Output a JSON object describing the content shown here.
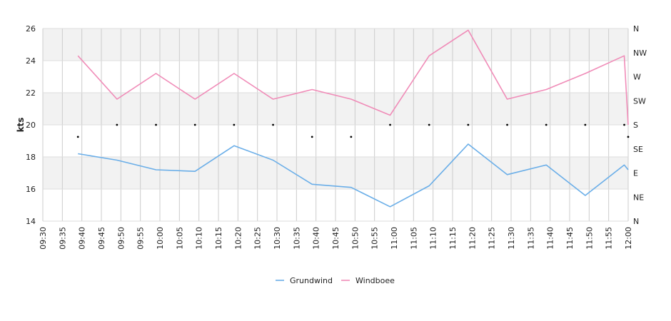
{
  "chart_data": {
    "type": "line",
    "ylabel": "kts",
    "ylim": [
      14,
      26
    ],
    "y_ticks": [
      "26",
      "24",
      "22",
      "20",
      "18",
      "16",
      "14"
    ],
    "right_axis_labels": [
      "N",
      "NW",
      "W",
      "SW",
      "S",
      "SE",
      "E",
      "NE",
      "N"
    ],
    "x_tick_labels": [
      "09:30",
      "09:35",
      "09:40",
      "09:45",
      "09:50",
      "09:55",
      "10:00",
      "10:05",
      "10:10",
      "10:15",
      "10:20",
      "10:25",
      "10:30",
      "10:35",
      "10:40",
      "10:45",
      "10:50",
      "10:55",
      "11:00",
      "11:05",
      "11:10",
      "11:15",
      "11:20",
      "11:25",
      "11:30",
      "11:35",
      "11:40",
      "11:45",
      "11:50",
      "11:55",
      "12:00"
    ],
    "grid": true,
    "legend_position": "bottom-center",
    "series": [
      {
        "name": "Grundwind",
        "color": "#6aaee8",
        "x": [
          "09:39",
          "09:49",
          "09:59",
          "10:09",
          "10:19",
          "10:29",
          "10:39",
          "10:49",
          "10:59",
          "11:09",
          "11:19",
          "11:29",
          "11:39",
          "11:49",
          "11:59",
          "12:00"
        ],
        "values": [
          18.2,
          17.8,
          17.2,
          17.1,
          18.7,
          17.8,
          16.3,
          16.1,
          14.9,
          16.2,
          18.8,
          16.9,
          17.5,
          15.6,
          17.5,
          17.2
        ]
      },
      {
        "name": "Windboee",
        "color": "#f08cb8",
        "x": [
          "09:39",
          "09:49",
          "09:59",
          "10:09",
          "10:19",
          "10:29",
          "10:39",
          "10:49",
          "10:59",
          "11:09",
          "11:19",
          "11:29",
          "11:39",
          "11:49",
          "11:59",
          "12:00"
        ],
        "values": [
          24.3,
          21.6,
          23.2,
          21.6,
          23.2,
          21.6,
          22.2,
          21.6,
          20.6,
          24.3,
          25.9,
          21.6,
          22.2,
          23.2,
          24.3,
          20.0
        ]
      }
    ],
    "direction": {
      "x": [
        "09:39",
        "09:49",
        "09:59",
        "10:09",
        "10:19",
        "10:29",
        "10:39",
        "10:49",
        "10:59",
        "11:09",
        "11:19",
        "11:29",
        "11:39",
        "11:49",
        "11:59",
        "12:00"
      ],
      "values": [
        "SSE",
        "S",
        "S",
        "S",
        "S",
        "S",
        "SSE",
        "SSE",
        "S",
        "S",
        "S",
        "S",
        "S",
        "S",
        "S",
        "SSE"
      ]
    }
  }
}
